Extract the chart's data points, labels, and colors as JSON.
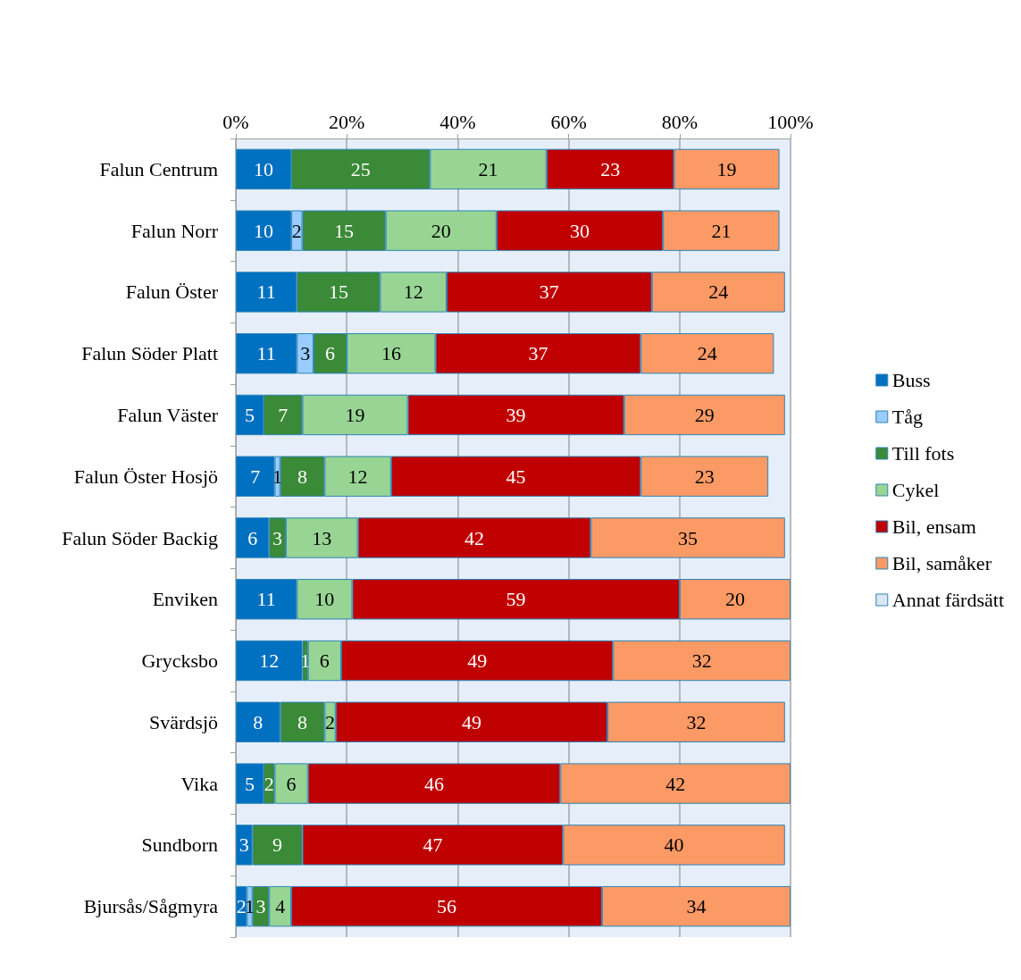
{
  "chart_data": {
    "type": "bar",
    "orientation": "horizontal",
    "stacked": true,
    "categories": [
      "Falun Centrum",
      "Falun Norr",
      "Falun Öster",
      "Falun Söder Platt",
      "Falun Väster",
      "Falun Öster Hosjö",
      "Falun Söder Backig",
      "Enviken",
      "Grycksbo",
      "Svärdsjö",
      "Vika",
      "Sundborn",
      "Bjursås/Sågmyra"
    ],
    "series": [
      {
        "name": "Buss",
        "color": "#0070c0",
        "values": [
          10,
          10,
          11,
          11,
          5,
          7,
          6,
          11,
          12,
          8,
          5,
          3,
          2
        ],
        "value_labels": [
          "10",
          "10",
          "11",
          "11",
          "5",
          "7",
          "6",
          "11",
          "12",
          "8",
          "5",
          "3",
          "2"
        ]
      },
      {
        "name": "Tåg",
        "color": "#99ccff",
        "values": [
          null,
          2,
          null,
          3,
          null,
          1,
          null,
          null,
          null,
          null,
          null,
          null,
          1
        ],
        "value_labels": [
          null,
          "2",
          null,
          "3",
          null,
          "1",
          null,
          null,
          null,
          null,
          null,
          null,
          "1"
        ]
      },
      {
        "name": "Till fots",
        "color": "#3a8a37",
        "values": [
          25,
          15,
          15,
          6,
          7,
          8,
          3,
          null,
          1,
          8,
          2,
          9,
          3
        ],
        "value_labels": [
          "25",
          "15",
          "15",
          "6",
          "7",
          "8",
          "3",
          null,
          "1",
          "8",
          "2",
          "9",
          "3"
        ]
      },
      {
        "name": "Cykel",
        "color": "#98d594",
        "values": [
          21,
          20,
          12,
          16,
          19,
          12,
          13,
          10,
          6,
          2,
          6,
          null,
          4
        ],
        "value_labels": [
          "21",
          "20",
          "12",
          "16",
          "19",
          "12",
          "13",
          "10",
          "6",
          "2",
          "6",
          null,
          "4"
        ]
      },
      {
        "name": "Bil, ensam",
        "color": "#c00000",
        "values": [
          23,
          30,
          37,
          37,
          39,
          45,
          42,
          59,
          49,
          49,
          45.5,
          47,
          56
        ],
        "value_labels": [
          "23",
          "30",
          "37",
          "37",
          "39",
          "45",
          "42",
          "59",
          "49",
          "49",
          "46",
          "47",
          "56"
        ]
      },
      {
        "name": "Bil, samåker",
        "color": "#fc9a66",
        "values": [
          19,
          21,
          24,
          24,
          29,
          23,
          35,
          20,
          32,
          32,
          41.5,
          40,
          34
        ],
        "value_labels": [
          "19",
          "21",
          "24",
          "24",
          "29",
          "23",
          "35",
          "20",
          "32",
          "32",
          "42",
          "40",
          "34"
        ]
      },
      {
        "name": "Annat färdsätt",
        "color": "#dce6f2",
        "values": [
          null,
          null,
          null,
          null,
          null,
          null,
          null,
          null,
          null,
          null,
          null,
          null,
          null
        ]
      }
    ],
    "xlim": [
      0,
      100
    ],
    "xticks": [
      {
        "value": 0,
        "label": "0%"
      },
      {
        "value": 20,
        "label": "20%"
      },
      {
        "value": 40,
        "label": "40%"
      },
      {
        "value": 60,
        "label": "60%"
      },
      {
        "value": 80,
        "label": "80%"
      },
      {
        "value": 100,
        "label": "100%"
      }
    ],
    "grid": "x",
    "legend": "right"
  }
}
